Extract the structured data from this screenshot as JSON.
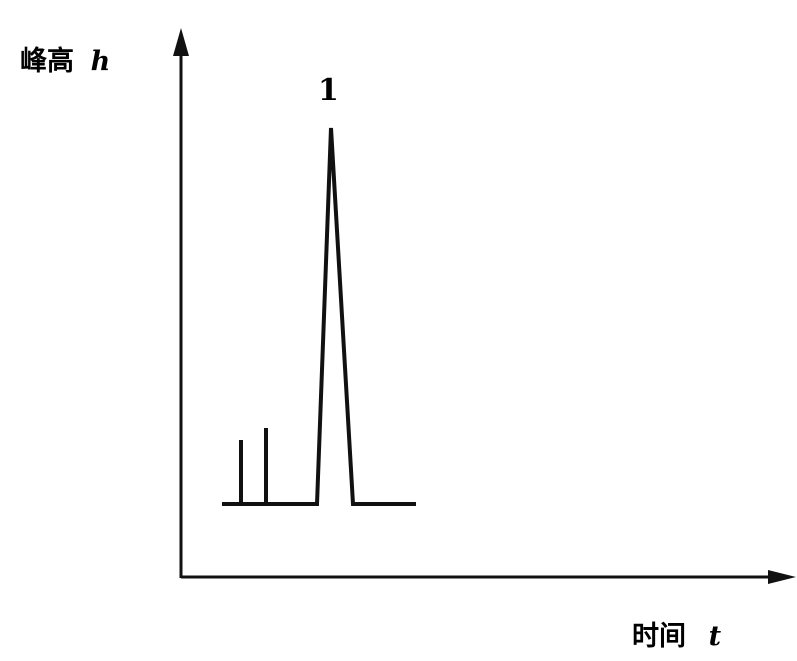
{
  "y_axis": {
    "label": "峰高",
    "symbol": "h"
  },
  "x_axis": {
    "label": "时间",
    "symbol": "t"
  },
  "peak": {
    "label": "1"
  }
}
